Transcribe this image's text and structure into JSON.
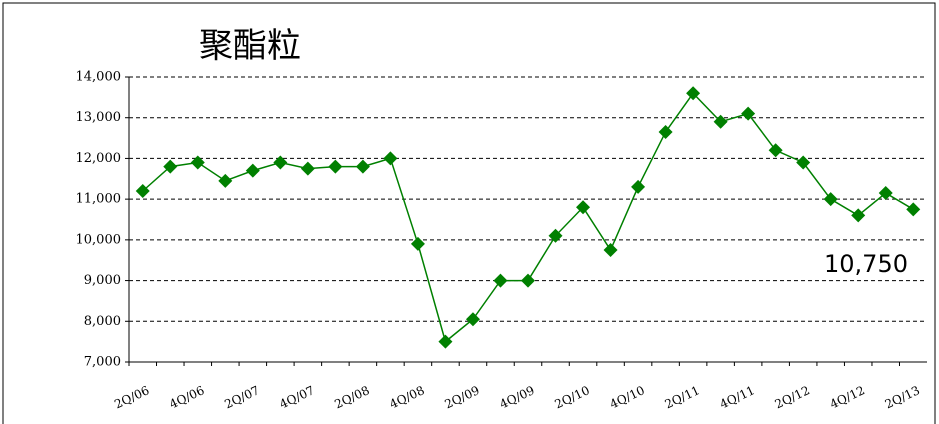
{
  "chart_data": {
    "type": "line",
    "title": "聚酯粒",
    "categories": [
      "2Q/06",
      null,
      "4Q/06",
      null,
      "2Q/07",
      null,
      "4Q/07",
      null,
      "2Q/08",
      null,
      "4Q/08",
      null,
      "2Q/09",
      null,
      "4Q/09",
      null,
      "2Q/10",
      null,
      "4Q/10",
      null,
      "2Q/11",
      null,
      "4Q/11",
      null,
      "2Q/12",
      null,
      "4Q/12",
      null,
      "2Q/13"
    ],
    "series": [
      {
        "name": "聚酯粒",
        "color": "#008000",
        "values": [
          11200,
          11800,
          11900,
          11450,
          11700,
          11900,
          11750,
          11800,
          11800,
          12000,
          9900,
          7500,
          8050,
          9000,
          9000,
          10100,
          10800,
          9750,
          11300,
          12650,
          13600,
          12900,
          13100,
          12200,
          11900,
          11000,
          10600,
          11150,
          10750
        ]
      }
    ],
    "ylim": [
      7000,
      14000
    ],
    "yticks": [
      {
        "value": 7000,
        "label": "7,000"
      },
      {
        "value": 8000,
        "label": "8,000"
      },
      {
        "value": 9000,
        "label": "9,000"
      },
      {
        "value": 10000,
        "label": "10,000"
      },
      {
        "value": 11000,
        "label": "11,000"
      },
      {
        "value": 12000,
        "label": "12,000"
      },
      {
        "value": 13000,
        "label": "13,000"
      },
      {
        "value": 14000,
        "label": "14,000"
      }
    ],
    "grid": true,
    "annotation": "10,750",
    "annotation_color": "#3333dd"
  }
}
